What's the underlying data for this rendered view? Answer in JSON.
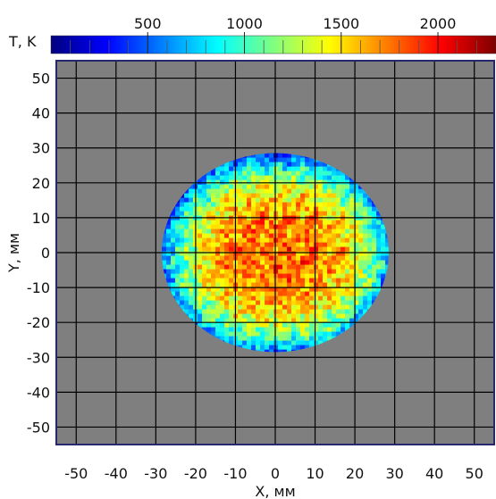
{
  "chart_data": {
    "type": "heatmap",
    "colorbar": {
      "label": "T, K",
      "range": [
        0,
        2300
      ],
      "ticks": [
        500,
        1000,
        1500,
        2000
      ],
      "tick_labels": [
        "500",
        "1000",
        "1500",
        "2000"
      ],
      "colormap": [
        "#00007f",
        "#0000ff",
        "#0080ff",
        "#00ffff",
        "#80ff80",
        "#ffff00",
        "#ff8000",
        "#ff0000",
        "#7f0000"
      ]
    },
    "xlabel": "X, мм",
    "ylabel": "Y, мм",
    "xlim": [
      -55,
      55
    ],
    "ylim": [
      -55,
      55
    ],
    "xticks": [
      -50,
      -40,
      -30,
      -20,
      -10,
      0,
      10,
      20,
      30,
      40,
      50
    ],
    "xtick_labels": [
      "-50",
      "-40",
      "-30",
      "-20",
      "-10",
      "0",
      "10",
      "20",
      "30",
      "40",
      "50"
    ],
    "yticks": [
      50,
      40,
      30,
      20,
      10,
      0,
      -10,
      -20,
      -30,
      -40,
      -50
    ],
    "ytick_labels": [
      "50",
      "40",
      "30",
      "20",
      "10",
      "0",
      "-10",
      "-20",
      "-30",
      "-40",
      "-50"
    ],
    "grid": true,
    "background_color": "#7f7f7f",
    "grid_color": "#000000",
    "frame_color": "#27276b",
    "disk": {
      "center": [
        0,
        0
      ],
      "radius": 28.5,
      "typical_center_temperature": 1750,
      "typical_edge_temperature": 600
    }
  }
}
